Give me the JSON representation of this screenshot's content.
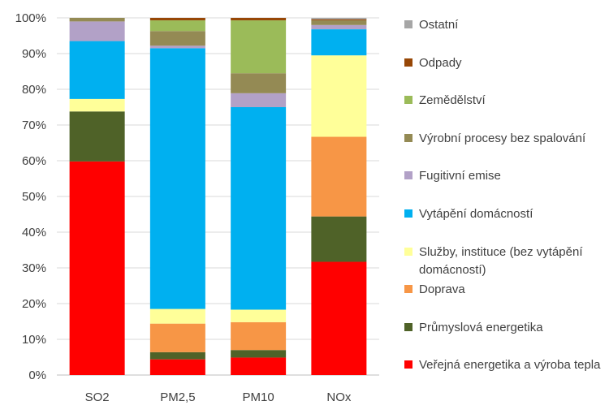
{
  "chart_data": {
    "type": "bar",
    "stacked": true,
    "percent": true,
    "categories": [
      "SO2",
      "PM2,5",
      "PM10",
      "NOx"
    ],
    "ylim": [
      0,
      100
    ],
    "yticks": [
      "0%",
      "10%",
      "20%",
      "30%",
      "40%",
      "50%",
      "60%",
      "70%",
      "80%",
      "90%",
      "100%"
    ],
    "grid": true,
    "legend_position": "right",
    "series": [
      {
        "name": "Veřejná energetika a výroba tepla",
        "color": "#ff0000",
        "values": [
          59.8,
          4.4,
          4.9,
          31.7
        ]
      },
      {
        "name": "Průmyslová energetika",
        "color": "#4f6228",
        "values": [
          14.0,
          2.0,
          2.1,
          12.7
        ]
      },
      {
        "name": "Doprava",
        "color": "#f79646",
        "values": [
          0.0,
          8.0,
          7.8,
          22.3
        ]
      },
      {
        "name": "Služby, instituce (bez vytápění domácností)",
        "color": "#ffff99",
        "values": [
          3.5,
          4.1,
          3.5,
          22.8
        ]
      },
      {
        "name": "Vytápění domácností",
        "color": "#00b0f0",
        "values": [
          16.2,
          73.0,
          56.7,
          7.3
        ]
      },
      {
        "name": "Fugitivní emise",
        "color": "#b2a1c7",
        "values": [
          5.5,
          0.7,
          3.9,
          1.2
        ]
      },
      {
        "name": "Výrobní procesy bez spalování",
        "color": "#948a54",
        "values": [
          1.0,
          4.1,
          5.6,
          1.3
        ]
      },
      {
        "name": "Zemědělství",
        "color": "#9bbb59",
        "values": [
          0.0,
          3.0,
          14.8,
          0.0
        ]
      },
      {
        "name": "Odpady",
        "color": "#974706",
        "values": [
          0.0,
          0.7,
          0.7,
          0.3
        ]
      },
      {
        "name": "Ostatní",
        "color": "#a6a6a6",
        "values": [
          0.0,
          0.0,
          0.0,
          0.4
        ]
      }
    ]
  }
}
